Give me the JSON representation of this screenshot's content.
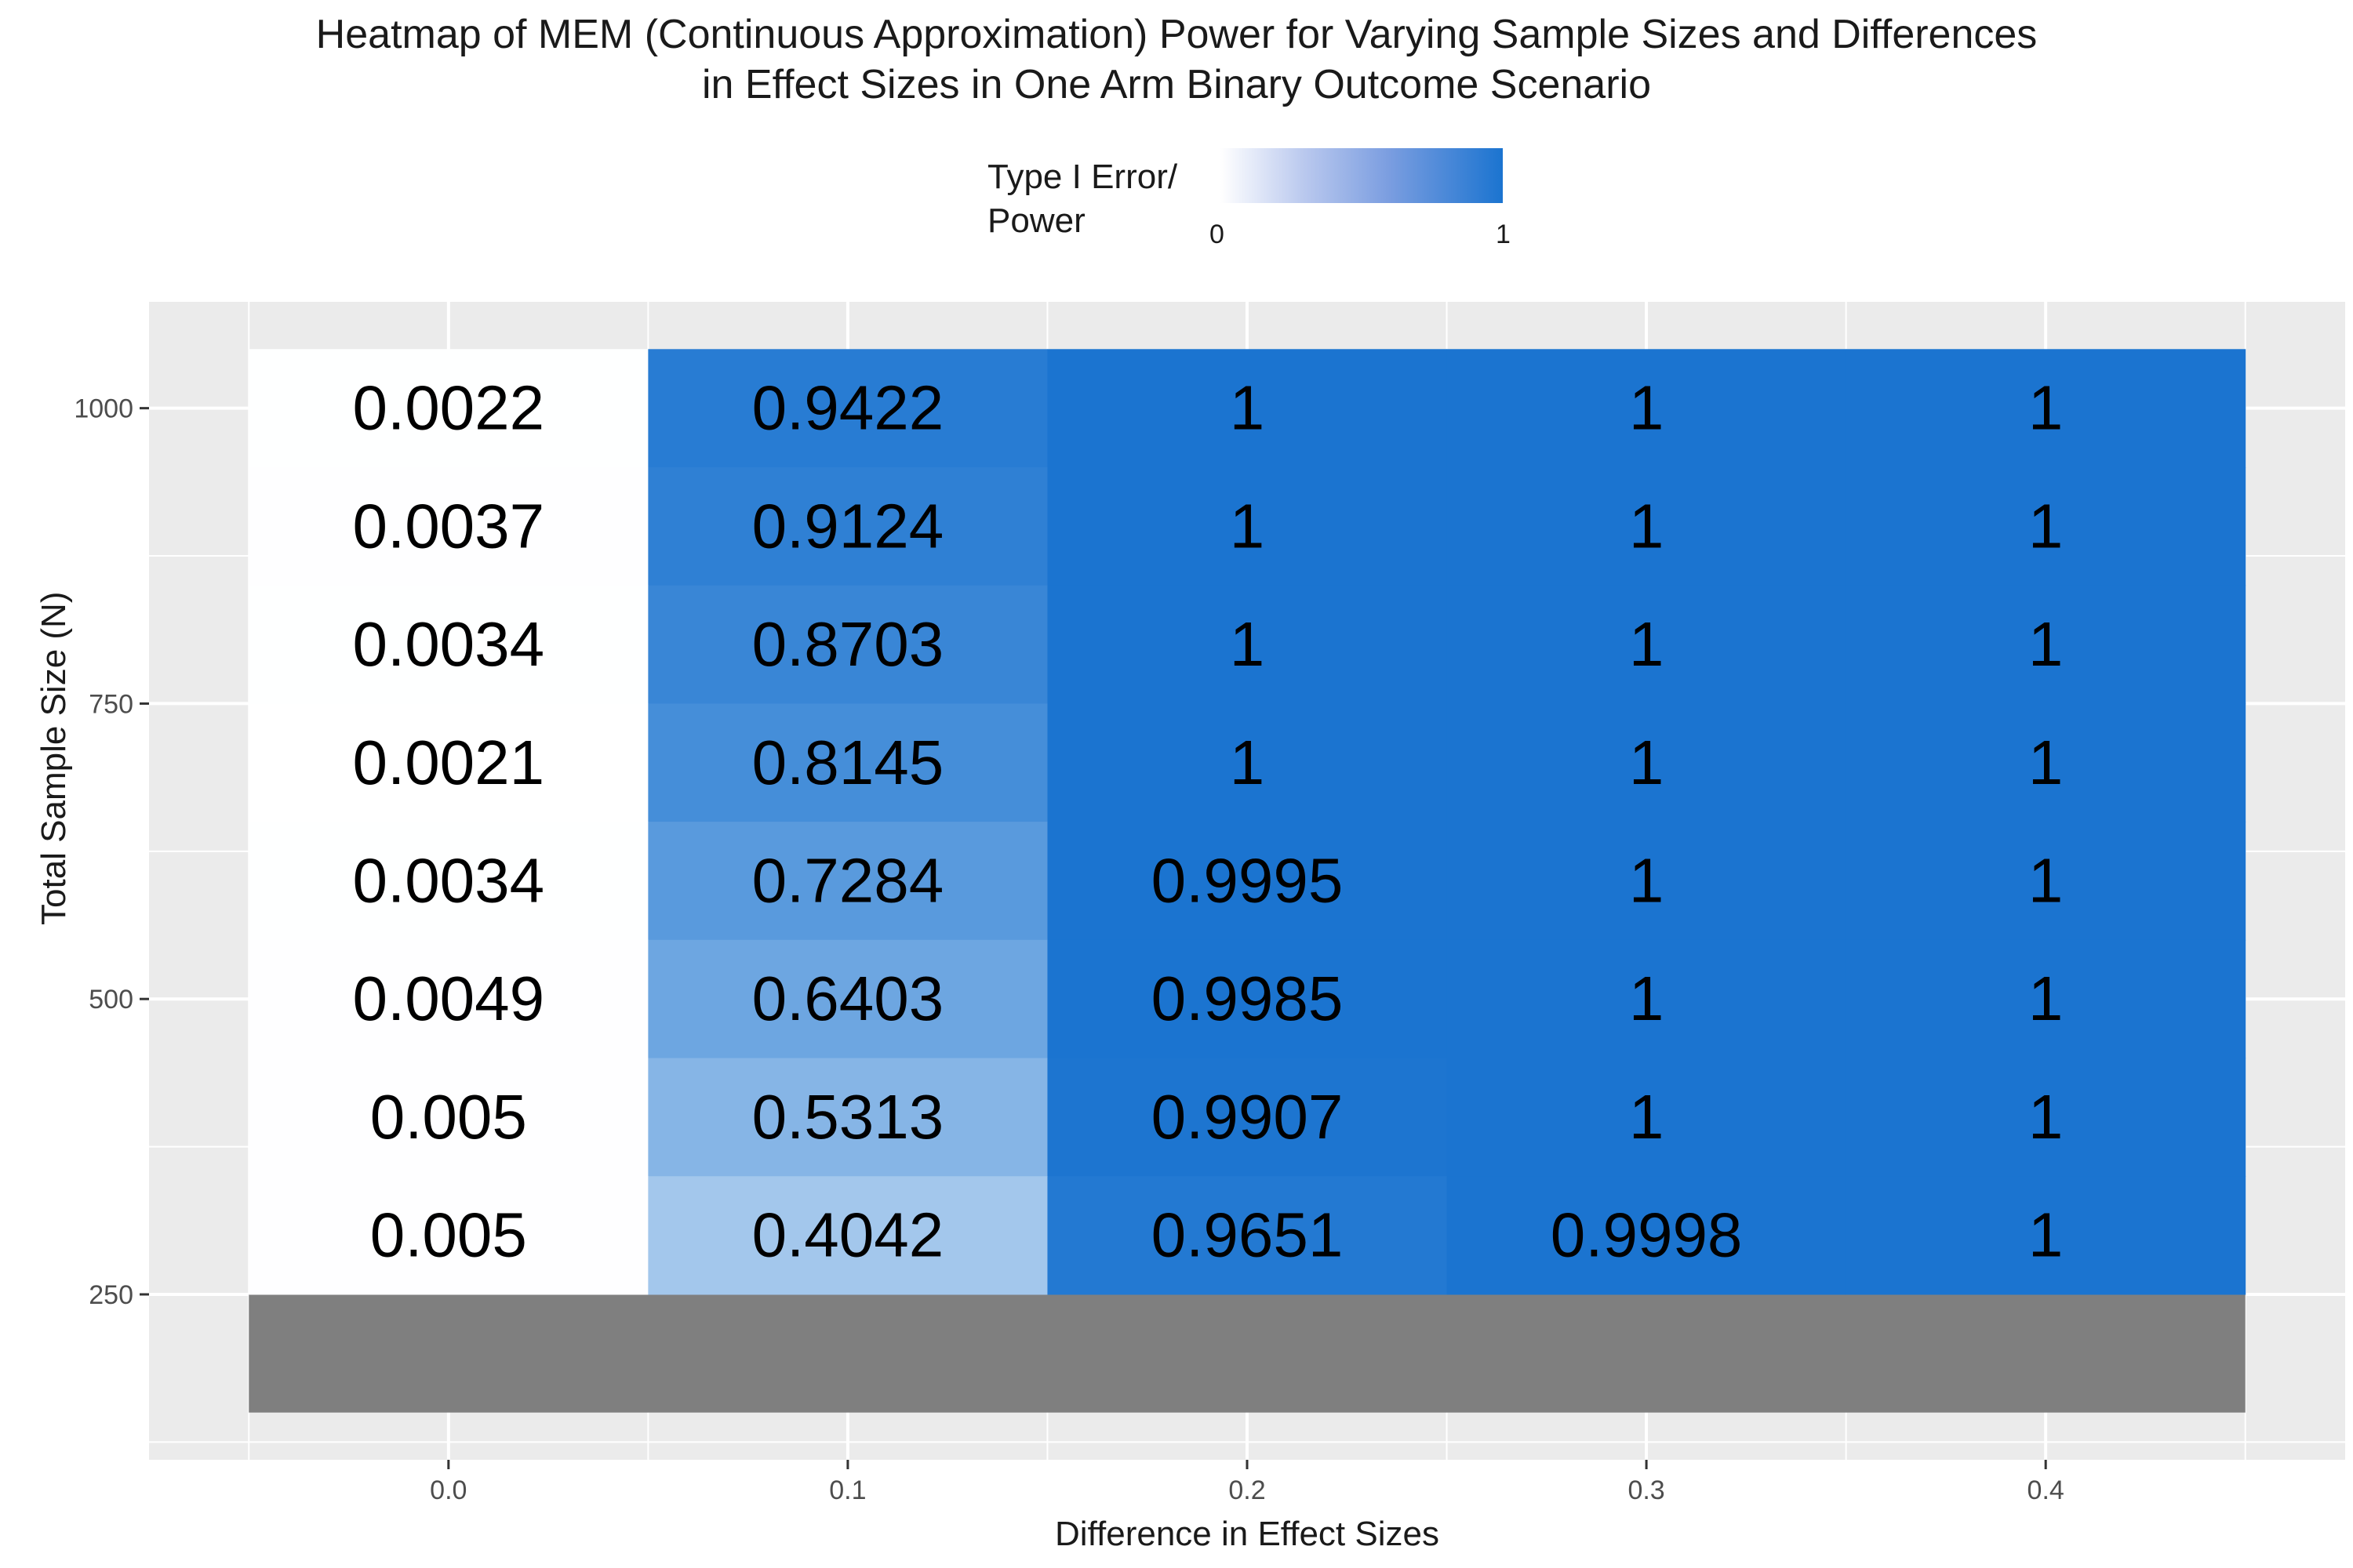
{
  "chart_data": {
    "type": "heatmap",
    "title": "Heatmap of MEM (Continuous Approximation) Power for Varying Sample Sizes and Differences",
    "title_line2": "in Effect Sizes in One Arm Binary Outcome Scenario",
    "xlabel": "Difference in Effect Sizes",
    "ylabel": "Total Sample Size (N)",
    "x_categories": [
      "0.0",
      "0.1",
      "0.2",
      "0.3",
      "0.4"
    ],
    "y_values": [
      1000,
      900,
      800,
      700,
      600,
      500,
      400,
      300
    ],
    "y_ticks": [
      250,
      500,
      750,
      1000
    ],
    "y_tick_labels": [
      "250",
      "500",
      "750",
      "1000"
    ],
    "values": [
      [
        "0.0022",
        "0.9422",
        "1",
        "1",
        "1"
      ],
      [
        "0.0037",
        "0.9124",
        "1",
        "1",
        "1"
      ],
      [
        "0.0034",
        "0.8703",
        "1",
        "1",
        "1"
      ],
      [
        "0.0021",
        "0.8145",
        "1",
        "1",
        "1"
      ],
      [
        "0.0034",
        "0.7284",
        "0.9995",
        "1",
        "1"
      ],
      [
        "0.0049",
        "0.6403",
        "0.9985",
        "1",
        "1"
      ],
      [
        "0.005",
        "0.5313",
        "0.9907",
        "1",
        "1"
      ],
      [
        "0.005",
        "0.4042",
        "0.9651",
        "0.9998",
        "1"
      ]
    ],
    "missing_row": {
      "sample_size": 200,
      "color": "#7f7f7f"
    },
    "legend": {
      "title": "Type I Error/\nPower",
      "min_label": "0",
      "max_label": "1",
      "low_color": "#ffffff",
      "high_color": "#1b74d0",
      "placement": "top"
    },
    "grid": true,
    "panel_background": "#ebebeb"
  }
}
